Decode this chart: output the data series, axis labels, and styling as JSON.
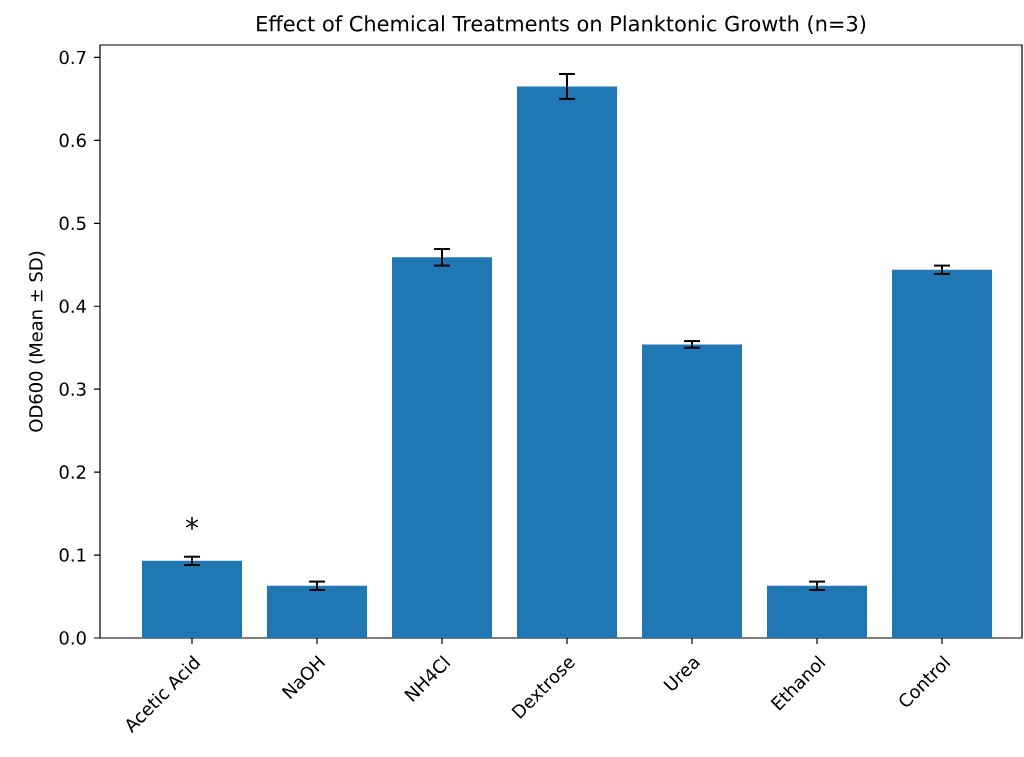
{
  "chart_data": {
    "type": "bar",
    "title": "Effect of Chemical Treatments on Planktonic Growth (n=3)",
    "ylabel": "OD600 (Mean ± SD)",
    "categories": [
      "Acetic Acid",
      "NaOH",
      "NH4Cl",
      "Dextrose",
      "Urea",
      "Ethanol",
      "Control"
    ],
    "values": [
      0.093,
      0.063,
      0.459,
      0.665,
      0.354,
      0.063,
      0.444
    ],
    "errors": [
      0.005,
      0.005,
      0.01,
      0.015,
      0.004,
      0.005,
      0.005
    ],
    "color": "#1f77b4",
    "ylim": [
      0,
      0.715
    ],
    "yticks": [
      {
        "value": 0,
        "label": "0.0"
      },
      {
        "value": 0.1,
        "label": "0.1"
      },
      {
        "value": 0.2,
        "label": "0.2"
      },
      {
        "value": 0.3,
        "label": "0.3"
      },
      {
        "value": 0.4,
        "label": "0.4"
      },
      {
        "value": 0.5,
        "label": "0.5"
      },
      {
        "value": 0.6,
        "label": "0.6"
      },
      {
        "value": 0.7,
        "label": "0.7"
      }
    ],
    "annotations": [
      "*"
    ]
  }
}
